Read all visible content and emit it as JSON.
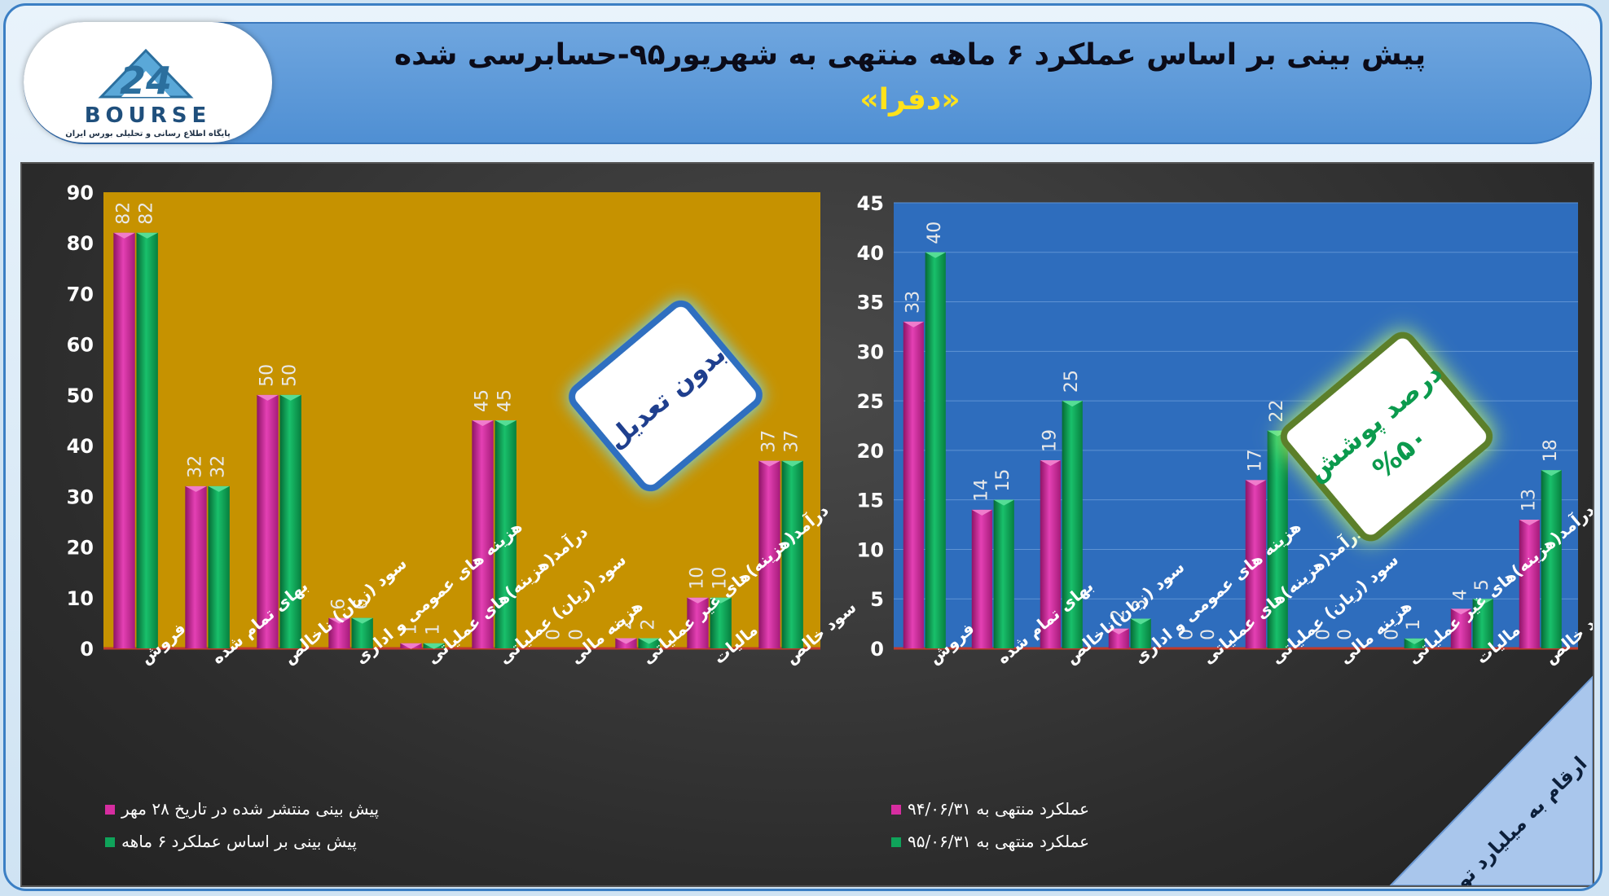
{
  "header": {
    "title": "پیش بینی بر اساس عملکرد ۶ ماهه منتهی به شهریور۹۵-حسابرسی شده",
    "subtitle": "«دفرا»"
  },
  "logo": {
    "word": "BOURSE",
    "subtitle": "پایگاه اطلاع رسانی و تحلیلی بورس ایران"
  },
  "colors": {
    "magenta": "#d62da0",
    "green": "#0fa35a",
    "left_bg": "#c69200",
    "right_bg": "#2e6dbd"
  },
  "chart_data": [
    {
      "type": "bar",
      "categories": [
        "فروش",
        "بهای تمام شده",
        "سود (زیان) ناخالص",
        "هزینه های عمومی و اداری",
        "درآمد(هزینه)های عملیاتی",
        "سود (زیان) عملیاتی",
        "هزینه مالی",
        "درآمد(هزینه)های غیر عملیاتی",
        "مالیات",
        "سود خالص"
      ],
      "series": [
        {
          "name": "پیش بینی منتشر شده در تاریخ ۲۸ مهر",
          "values": [
            82,
            32,
            50,
            6,
            1,
            45,
            0,
            2,
            10,
            37
          ]
        },
        {
          "name": "پیش بینی بر اساس عملکرد ۶ ماهه",
          "values": [
            82,
            32,
            50,
            6,
            1,
            45,
            0,
            2,
            10,
            37
          ]
        }
      ],
      "ylim": [
        0,
        90
      ],
      "yticks": [
        0,
        10,
        20,
        30,
        40,
        50,
        60,
        70,
        80,
        90
      ],
      "annotation": "بدون تعدیل",
      "legend_position": "bottom-left",
      "grid": false
    },
    {
      "type": "bar",
      "categories": [
        "فروش",
        "بهای تمام شده",
        "سود (زیان)ناخالص",
        "هزینه های عمومی و اداری",
        "درآمد(هزینه)های عملیاتی",
        "سود (زیان) عملیاتی",
        "هزینه مالی",
        "درآمد(هزینه)های غیر عملیاتی",
        "مالیات",
        "سود خالص"
      ],
      "series": [
        {
          "name": "عملکرد منتهی به ۹۴/۰۶/۳۱",
          "values": [
            33,
            14,
            19,
            2,
            0,
            17,
            0,
            0,
            4,
            13
          ]
        },
        {
          "name": "عملکرد منتهی به ۹۵/۰۶/۳۱",
          "values": [
            40,
            15,
            25,
            3,
            0,
            22,
            0,
            1,
            5,
            18
          ]
        }
      ],
      "ylim": [
        0,
        45
      ],
      "yticks": [
        0,
        5,
        10,
        15,
        20,
        25,
        30,
        35,
        40,
        45
      ],
      "annotation": [
        "درصد پوشش",
        "%۵۰"
      ],
      "legend_position": "bottom-left",
      "grid": true
    }
  ],
  "corner_note": "ارقام به میلیارد تومان"
}
